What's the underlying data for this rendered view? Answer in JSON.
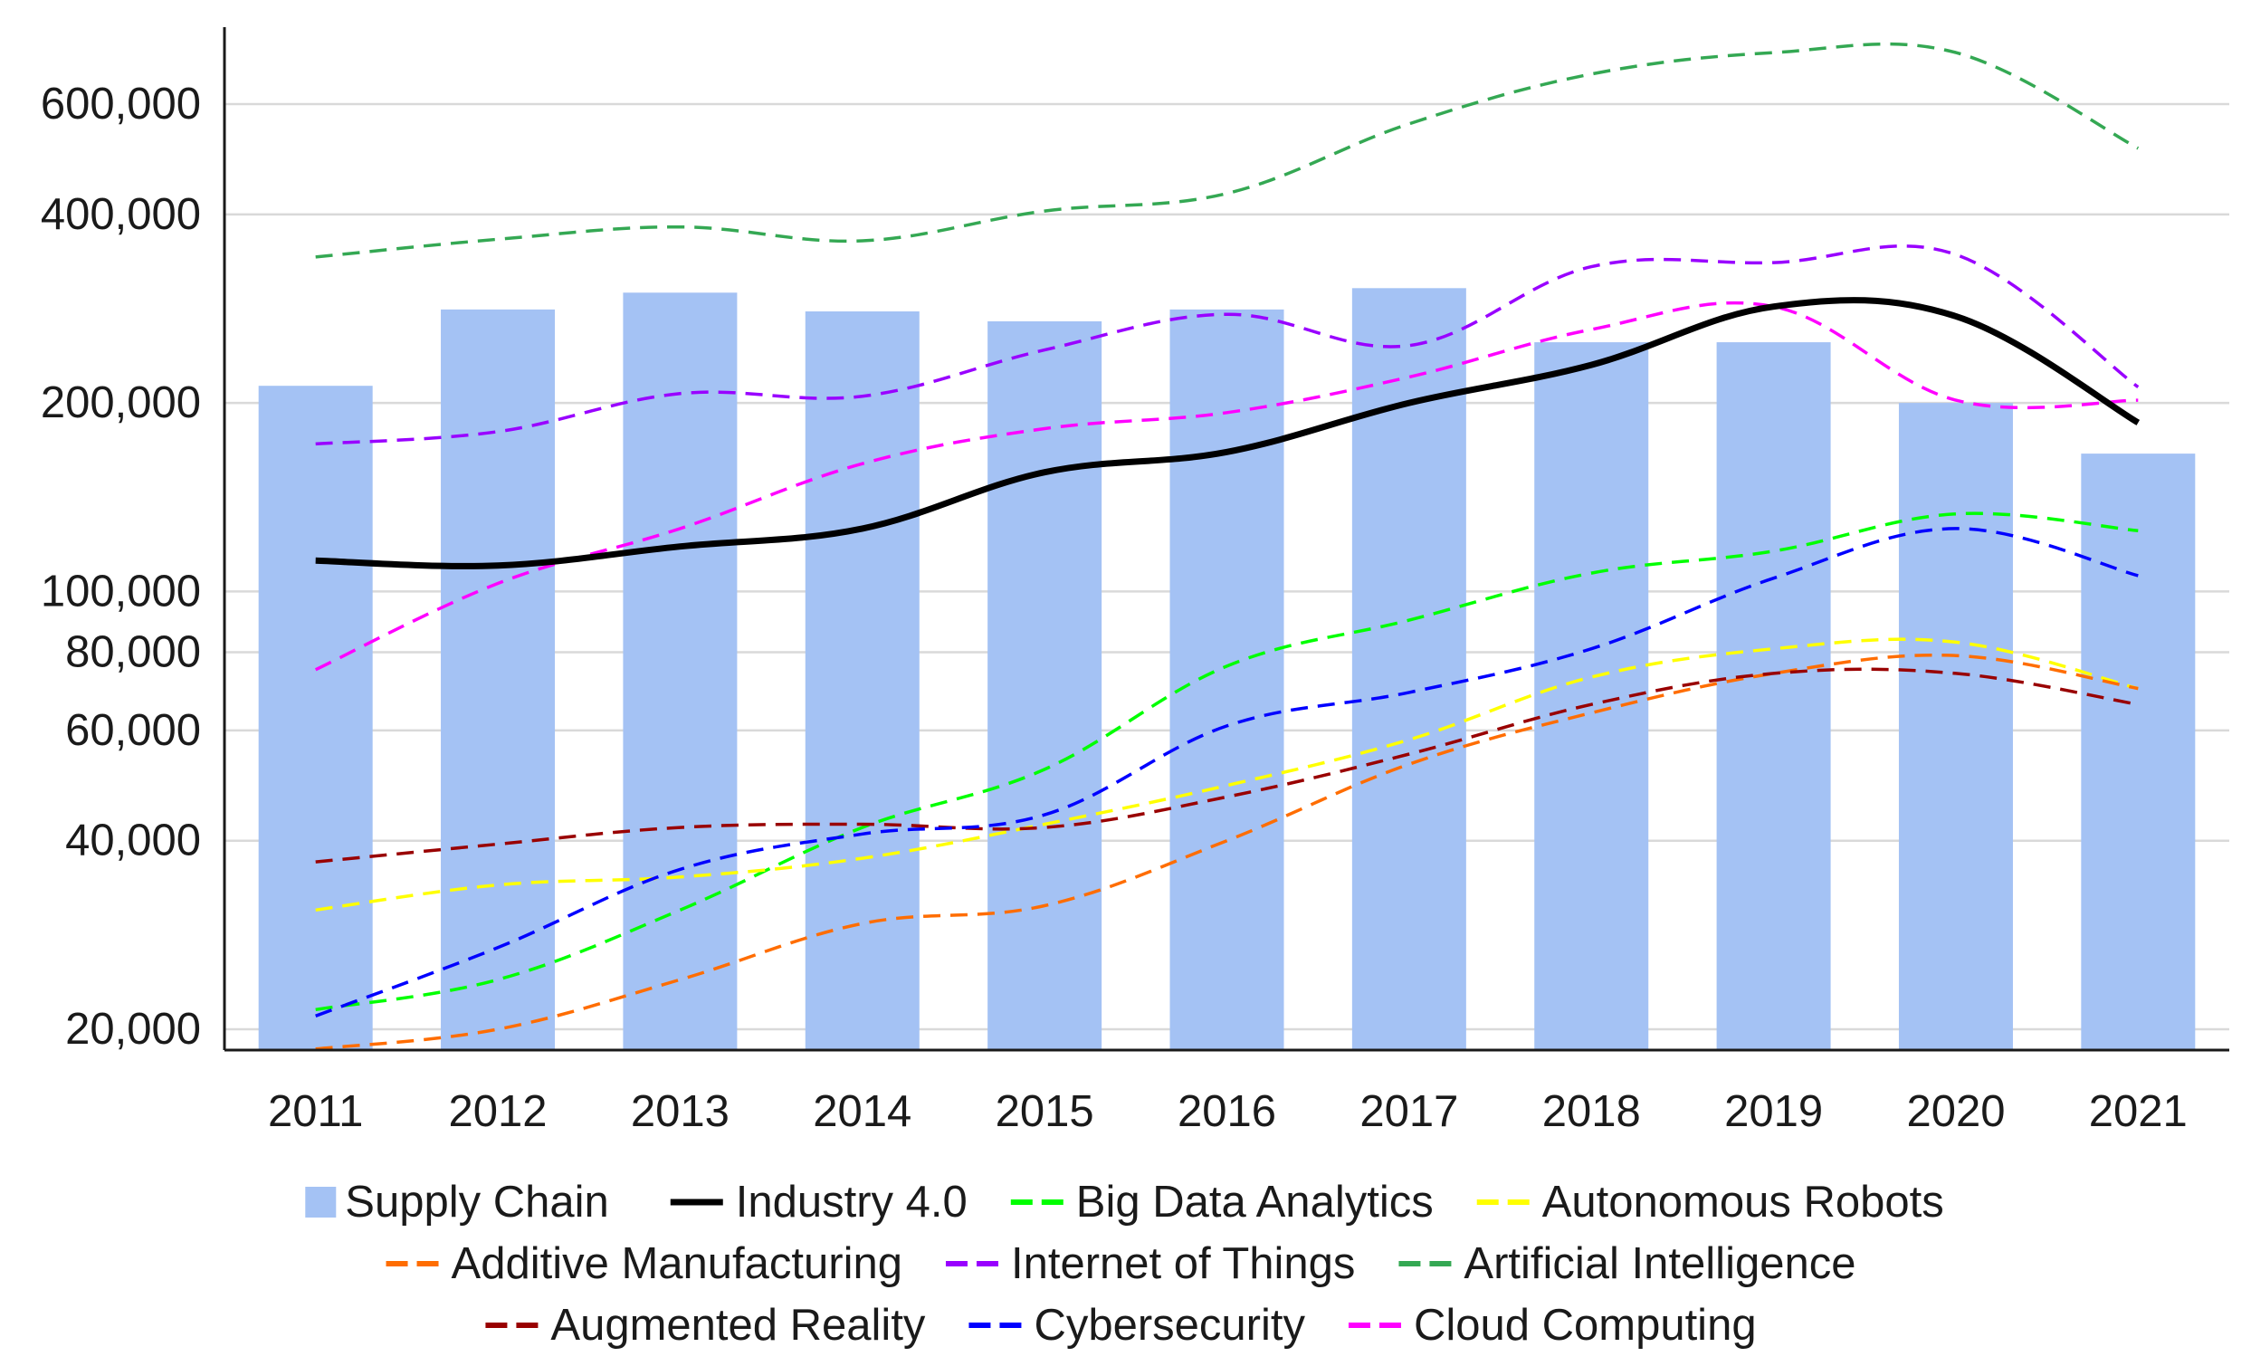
{
  "chart_data": {
    "type": "bar+line",
    "title": "",
    "xlabel": "",
    "ylabel": "",
    "yscale": "log",
    "ylim": [
      18500,
      730000
    ],
    "grid": true,
    "legend_position": "bottom",
    "categories": [
      "2011",
      "2012",
      "2013",
      "2014",
      "2015",
      "2016",
      "2017",
      "2018",
      "2019",
      "2020",
      "2021"
    ],
    "y_ticks": [
      20000,
      40000,
      60000,
      80000,
      100000,
      200000,
      400000,
      600000
    ],
    "y_tick_labels": [
      "20,000",
      "40,000",
      "60,000",
      "80,000",
      "100,000",
      "200,000",
      "400,000",
      "600,000"
    ],
    "bars": {
      "name": "Supply Chain",
      "color": "#a4c2f4",
      "values": [
        213000,
        282000,
        300000,
        280000,
        270000,
        282000,
        305000,
        250000,
        250000,
        200000,
        166000
      ]
    },
    "series": [
      {
        "name": "Industry 4.0",
        "color": "#000000",
        "style": "solid",
        "values": [
          112000,
          110000,
          118000,
          126000,
          155000,
          167000,
          200000,
          230000,
          285000,
          275000,
          186000
        ]
      },
      {
        "name": "Big Data Analytics",
        "color": "#00ff00",
        "style": "dashed",
        "values": [
          21500,
          24000,
          31000,
          42000,
          52000,
          76000,
          90000,
          107000,
          116000,
          133000,
          125000
        ]
      },
      {
        "name": "Autonomous Robots",
        "color": "#ffff00",
        "style": "dashed",
        "values": [
          31000,
          34000,
          35000,
          37500,
          42500,
          49000,
          58000,
          73000,
          81000,
          83000,
          70000
        ]
      },
      {
        "name": "Additive Manufacturing",
        "color": "#ff6d01",
        "style": "dashed",
        "values": [
          18600,
          20000,
          24000,
          29500,
          31500,
          40000,
          53000,
          64000,
          74000,
          79000,
          70000
        ]
      },
      {
        "name": "Internet of Things",
        "color": "#9900ff",
        "style": "dashed",
        "values": [
          172000,
          180000,
          207000,
          205000,
          243000,
          277000,
          247000,
          330000,
          335000,
          345000,
          212000
        ]
      },
      {
        "name": "Artificial Intelligence",
        "color": "#34a853",
        "style": "dashed",
        "values": [
          342000,
          365000,
          382000,
          363000,
          405000,
          432000,
          558000,
          670000,
          725000,
          725000,
          510000
        ]
      },
      {
        "name": "Augmented Reality",
        "color": "#990000",
        "style": "dashed",
        "values": [
          37000,
          39500,
          42000,
          42500,
          42000,
          47000,
          55000,
          66000,
          74000,
          74000,
          66000
        ]
      },
      {
        "name": "Cybersecurity",
        "color": "#0000ff",
        "style": "dashed",
        "values": [
          21000,
          27000,
          36000,
          41000,
          44000,
          61000,
          69000,
          81000,
          105000,
          126000,
          106000
        ]
      },
      {
        "name": "Cloud Computing",
        "color": "#ff00ff",
        "style": "dashed",
        "values": [
          75000,
          103000,
          126000,
          160000,
          182000,
          193000,
          220000,
          262000,
          285000,
          202000,
          202000
        ]
      }
    ],
    "legend_rows": [
      [
        "Supply Chain",
        "Industry 4.0",
        "Big Data Analytics",
        "Autonomous Robots"
      ],
      [
        "Additive Manufacturing",
        "Internet of Things",
        "Artificial Intelligence"
      ],
      [
        "Augmented Reality",
        "Cybersecurity",
        "Cloud Computing"
      ]
    ]
  }
}
